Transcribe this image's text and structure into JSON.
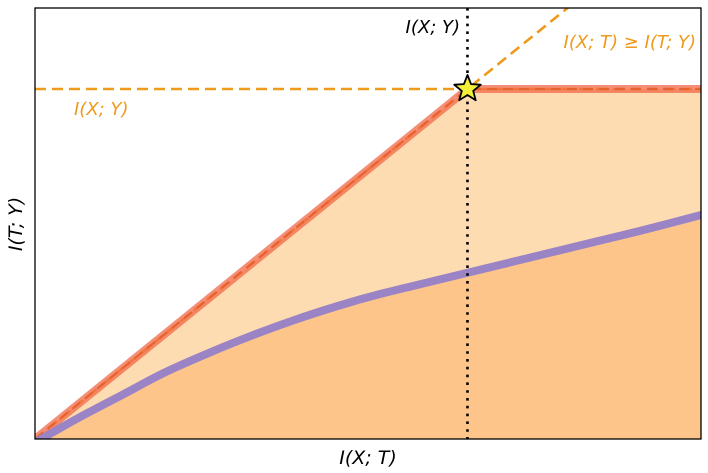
{
  "chart_data": {
    "type": "line",
    "title": "",
    "xlabel": "I(X; T)",
    "ylabel": "I(T; Y)",
    "xlim": [
      0,
      1.54
    ],
    "ylim": [
      0,
      1.0
    ],
    "axes_ticks": false,
    "grid": false,
    "colors": {
      "bound": "#f06a4a",
      "bound_dash": "#e8622e",
      "curve": "#9b84c6",
      "orange": "#ee9a1c",
      "region_light": "#fedcb2",
      "region_dark": "#fdc58a",
      "star": "#f3f03a"
    },
    "series": [
      {
        "role": "upper-bound",
        "x": [
          0,
          1.0,
          1.54
        ],
        "y": [
          0,
          1.0,
          1.0
        ]
      },
      {
        "role": "achievable-curve",
        "x": [
          0.0,
          0.1,
          0.2,
          0.3,
          0.4,
          0.5,
          0.6,
          0.7,
          0.8,
          0.9,
          1.0,
          1.1,
          1.2,
          1.3,
          1.4,
          1.54
        ],
        "y": [
          -0.01,
          0.06,
          0.125,
          0.19,
          0.245,
          0.295,
          0.34,
          0.38,
          0.415,
          0.445,
          0.475,
          0.505,
          0.535,
          0.565,
          0.595,
          0.64
        ]
      }
    ],
    "reference_lines": [
      {
        "orientation": "vertical",
        "value": 1.0,
        "label": "I(X; Y)",
        "style": "dotted"
      },
      {
        "orientation": "horizontal",
        "value": 1.0,
        "label": "I(X; Y)",
        "style": "dashed"
      },
      {
        "orientation": "diagonal",
        "slope": 1,
        "label": "I(X; T) ≥ I(T; Y)",
        "style": "dashed"
      }
    ],
    "marker": {
      "shape": "star",
      "x": 1.0,
      "y": 1.0
    }
  }
}
